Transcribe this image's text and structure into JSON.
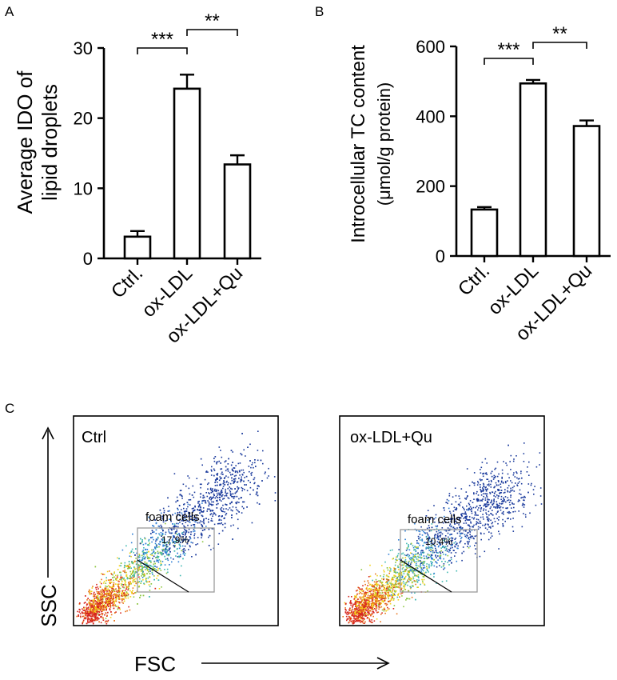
{
  "panels": {
    "a": "A",
    "b": "B",
    "c": "C"
  },
  "chart_data": [
    {
      "type": "bar",
      "panel": "A",
      "ylabel": [
        "Average IDO of",
        "lipid droplets"
      ],
      "categories": [
        "Ctrl.",
        "ox-LDL",
        "ox-LDL+Qu"
      ],
      "values": [
        3.1,
        24.2,
        13.4
      ],
      "errors": [
        0.8,
        2.0,
        1.3
      ],
      "ylim": [
        0,
        30
      ],
      "yticks": [
        0,
        10,
        20,
        30
      ],
      "significance": [
        {
          "from": 0,
          "to": 1,
          "label": "***"
        },
        {
          "from": 1,
          "to": 2,
          "label": "**"
        }
      ],
      "bar_fill": "#ffffff",
      "bar_stroke": "#000000"
    },
    {
      "type": "bar",
      "panel": "B",
      "ylabel": [
        "Introcellular TC content",
        "(μmol/g protein)"
      ],
      "categories": [
        "Ctrl.",
        "ox-LDL",
        "ox-LDL+Qu"
      ],
      "values": [
        133,
        494,
        372
      ],
      "errors": [
        7,
        10,
        16
      ],
      "ylim": [
        0,
        600
      ],
      "yticks": [
        0,
        200,
        400,
        600
      ],
      "significance": [
        {
          "from": 0,
          "to": 1,
          "label": "***"
        },
        {
          "from": 1,
          "to": 2,
          "label": "**"
        }
      ],
      "bar_fill": "#ffffff",
      "bar_stroke": "#000000"
    },
    {
      "type": "scatter",
      "panel": "C",
      "xlabel": "FSC",
      "ylabel": "SSC",
      "plots": [
        {
          "title": "Ctrl",
          "gate_label": "foam cells",
          "gate_percent": "17.9%"
        },
        {
          "title": "ox-LDL+Qu",
          "gate_label": "foam cells",
          "gate_percent": "10.4%"
        }
      ],
      "density_colors": [
        "#1a3a9c",
        "#2f7fd6",
        "#3fb8b0",
        "#8cc63f",
        "#f2d21b",
        "#e8731a",
        "#d7261e"
      ]
    }
  ]
}
